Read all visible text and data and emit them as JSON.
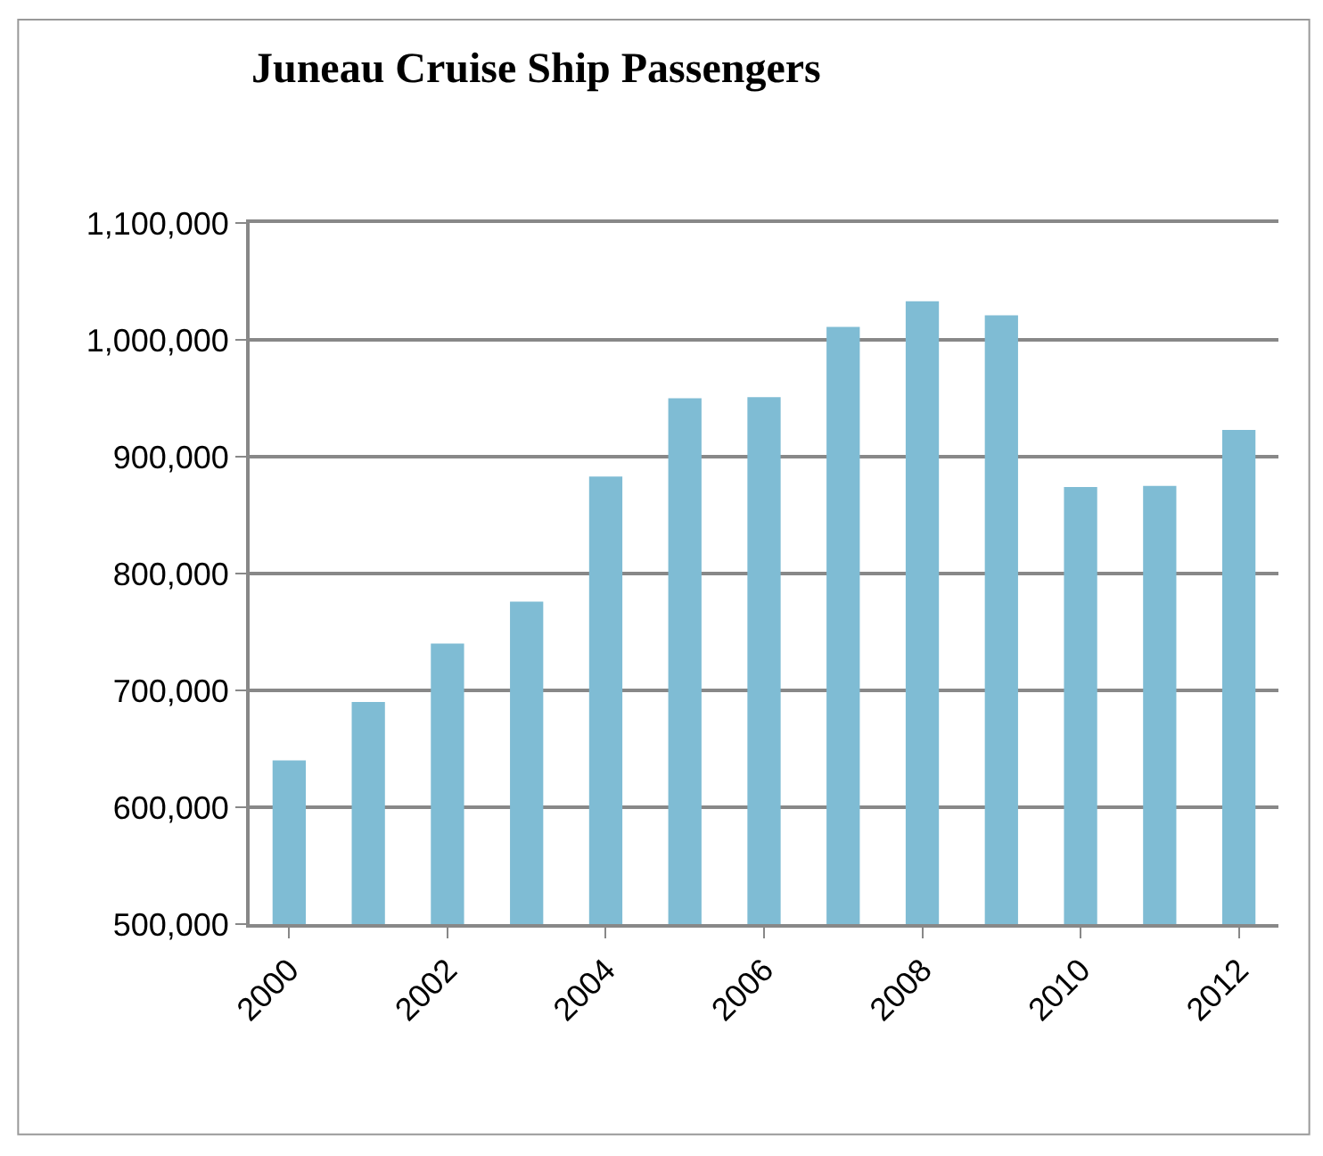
{
  "chart_data": {
    "type": "bar",
    "title": "Juneau Cruise Ship Passengers",
    "x": [
      2000,
      2001,
      2002,
      2003,
      2004,
      2005,
      2006,
      2007,
      2008,
      2009,
      2010,
      2011,
      2012
    ],
    "values": [
      640000,
      690000,
      740000,
      776000,
      883000,
      950000,
      951000,
      1011000,
      1033000,
      1021000,
      874000,
      875000,
      923000
    ],
    "color": "#7fbcd4",
    "xlim": [
      1999.5,
      2012.5
    ],
    "xticks": [
      2000,
      2002,
      2004,
      2006,
      2008,
      2010,
      2012
    ],
    "ylim": [
      500000,
      1100000
    ],
    "yticks": [
      {
        "value": 500000,
        "label": "500,000"
      },
      {
        "value": 600000,
        "label": "600,000"
      },
      {
        "value": 700000,
        "label": "700,000"
      },
      {
        "value": 800000,
        "label": "800,000"
      },
      {
        "value": 900000,
        "label": "900,000"
      },
      {
        "value": 1000000,
        "label": "1,000,000"
      },
      {
        "value": 1100000,
        "label": "1,100,000"
      }
    ],
    "grid": "y"
  }
}
